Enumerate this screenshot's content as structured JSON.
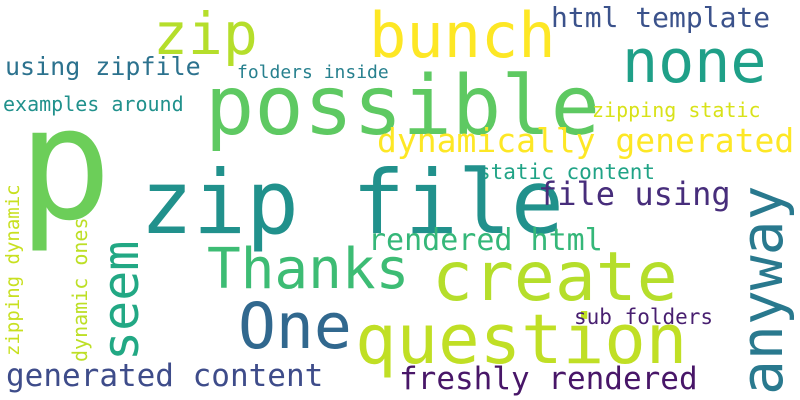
{
  "words": {
    "p": {
      "text": "p",
      "color": "#6cce59"
    },
    "zip": {
      "text": "zip",
      "color": "#b5de2b"
    },
    "bunch": {
      "text": "bunch",
      "color": "#fde725"
    },
    "html_template": {
      "text": "html template",
      "color": "#3b528b"
    },
    "none": {
      "text": "none",
      "color": "#1fa088"
    },
    "using_zipfile": {
      "text": "using zipfile",
      "color": "#2c728e"
    },
    "folders_inside": {
      "text": "folders inside",
      "color": "#27808e"
    },
    "possible": {
      "text": "possible",
      "color": "#5ec962"
    },
    "examples_around": {
      "text": "examples around",
      "color": "#21918c"
    },
    "zipping_static": {
      "text": "zipping static",
      "color": "#d8e219"
    },
    "dynamically_generated": {
      "text": "dynamically generated",
      "color": "#fde725"
    },
    "static_content": {
      "text": "static content",
      "color": "#20a386"
    },
    "zip_file": {
      "text": "zip file",
      "color": "#21918c"
    },
    "file_using": {
      "text": "file using",
      "color": "#472d7b"
    },
    "zipping_dynamic": {
      "text": "zipping dynamic",
      "color": "#c8e020"
    },
    "dynamic_ones": {
      "text": "dynamic ones",
      "color": "#bddf26"
    },
    "seem": {
      "text": "seem",
      "color": "#22a884"
    },
    "anyway": {
      "text": "anyway",
      "color": "#29798e"
    },
    "rendered_html": {
      "text": "rendered html",
      "color": "#35b779"
    },
    "thanks": {
      "text": "Thanks",
      "color": "#3dbc74"
    },
    "create": {
      "text": "create",
      "color": "#b5de2b"
    },
    "one": {
      "text": "One",
      "color": "#31688e"
    },
    "question": {
      "text": "question",
      "color": "#c0df25"
    },
    "sub_folders": {
      "text": "sub folders",
      "color": "#481f70"
    },
    "generated_content": {
      "text": "generated content",
      "color": "#3e4c8a"
    },
    "freshly_rendered": {
      "text": "freshly rendered",
      "color": "#481668"
    }
  }
}
